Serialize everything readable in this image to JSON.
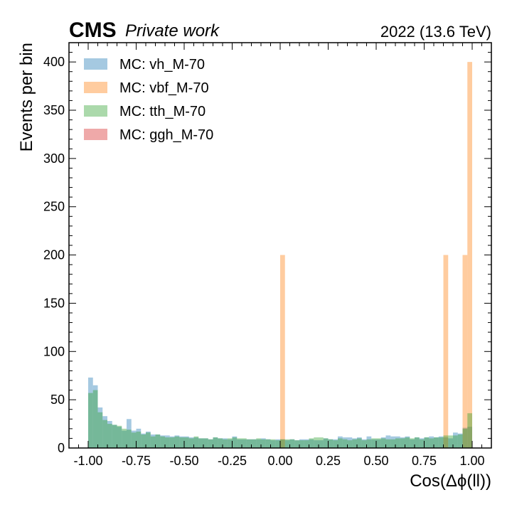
{
  "chart_data": {
    "type": "bar",
    "histogram": true,
    "experiment_label": "CMS",
    "experiment_sublabel": "Private work",
    "lumi_label": "2022 (13.6 TeV)",
    "xlabel": "Cos(Δϕ(ll))",
    "ylabel": "Events per bin",
    "xlim": [
      -1.1,
      1.1
    ],
    "ylim": [
      0,
      420
    ],
    "bins": {
      "start": -1.0,
      "end": 1.0,
      "count": 80
    },
    "x_ticks": [
      "-1.00",
      "-0.75",
      "-0.50",
      "-0.25",
      "0.00",
      "0.25",
      "0.50",
      "0.75",
      "1.00"
    ],
    "x_tick_values": [
      -1.0,
      -0.75,
      -0.5,
      -0.25,
      0.0,
      0.25,
      0.5,
      0.75,
      1.0
    ],
    "y_ticks": [
      "0",
      "50",
      "100",
      "150",
      "200",
      "250",
      "300",
      "350",
      "400"
    ],
    "y_tick_values": [
      0,
      50,
      100,
      150,
      200,
      250,
      300,
      350,
      400
    ],
    "legend_position": "top-left",
    "series": [
      {
        "name": "MC: vh_M-70",
        "color": "#1f77b4",
        "opacity": 0.4,
        "values": [
          73,
          65,
          42,
          33,
          28,
          24,
          22,
          18,
          30,
          18,
          20,
          15,
          17,
          14,
          14,
          13,
          13,
          12,
          13,
          12,
          12,
          11,
          11,
          10,
          10,
          9,
          11,
          10,
          10,
          9,
          12,
          9,
          9,
          9,
          9,
          9,
          10,
          9,
          8,
          9,
          9,
          8,
          9,
          8,
          9,
          9,
          9,
          8,
          8,
          10,
          9,
          9,
          12,
          11,
          11,
          10,
          11,
          9,
          12,
          9,
          9,
          11,
          13,
          12,
          12,
          11,
          12,
          9,
          11,
          10,
          11,
          12,
          11,
          12,
          11,
          10,
          16,
          15,
          21,
          22
        ]
      },
      {
        "name": "MC: vbf_M-70",
        "color": "#ff7f0e",
        "opacity": 0.4,
        "values": [
          0,
          0,
          0,
          0,
          0,
          0,
          0,
          0,
          0,
          0,
          0,
          0,
          0,
          0,
          0,
          0,
          0,
          0,
          0,
          0,
          0,
          0,
          0,
          0,
          0,
          0,
          0,
          0,
          0,
          0,
          0,
          0,
          0,
          0,
          0,
          0,
          0,
          0,
          0,
          0,
          200,
          0,
          0,
          0,
          0,
          0,
          0,
          0,
          0,
          0,
          0,
          0,
          0,
          0,
          0,
          0,
          0,
          0,
          0,
          0,
          0,
          0,
          0,
          0,
          0,
          0,
          0,
          0,
          0,
          0,
          0,
          0,
          0,
          0,
          200,
          0,
          0,
          0,
          200,
          400
        ]
      },
      {
        "name": "MC: tth_M-70",
        "color": "#2ca02c",
        "opacity": 0.4,
        "values": [
          57,
          60,
          37,
          29,
          25,
          24,
          23,
          20,
          19,
          16,
          17,
          14,
          16,
          12,
          14,
          12,
          11,
          11,
          12,
          11,
          11,
          10,
          12,
          10,
          10,
          9,
          11,
          10,
          9,
          10,
          11,
          10,
          10,
          9,
          9,
          10,
          9,
          9,
          9,
          8,
          9,
          9,
          9,
          8,
          8,
          8,
          10,
          11,
          11,
          10,
          9,
          8,
          10,
          9,
          8,
          9,
          10,
          8,
          9,
          10,
          10,
          10,
          9,
          9,
          10,
          10,
          11,
          10,
          11,
          9,
          11,
          10,
          11,
          11,
          13,
          13,
          13,
          14,
          20,
          36
        ]
      },
      {
        "name": "MC: ggh_M-70",
        "color": "#d62728",
        "opacity": 0.4,
        "values": []
      }
    ]
  }
}
